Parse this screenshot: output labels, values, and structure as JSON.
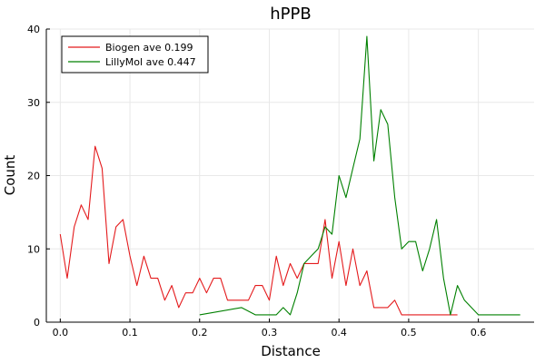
{
  "chart_data": {
    "type": "line",
    "title": "hPPB",
    "xlabel": "Distance",
    "ylabel": "Count",
    "xlim": [
      -0.02,
      0.68
    ],
    "ylim": [
      0,
      40
    ],
    "xticks": [
      0.0,
      0.1,
      0.2,
      0.3,
      0.4,
      0.5,
      0.6
    ],
    "xtick_labels": [
      "0.0",
      "0.1",
      "0.2",
      "0.3",
      "0.4",
      "0.5",
      "0.6"
    ],
    "yticks": [
      0,
      10,
      20,
      30,
      40
    ],
    "ytick_labels": [
      "0",
      "10",
      "20",
      "30",
      "40"
    ],
    "grid": true,
    "legend_position": "top-left",
    "series": [
      {
        "name": "Biogen ave 0.199",
        "color": "#e41a1c",
        "x": [
          0.0,
          0.01,
          0.02,
          0.03,
          0.04,
          0.05,
          0.06,
          0.07,
          0.08,
          0.09,
          0.1,
          0.11,
          0.12,
          0.13,
          0.14,
          0.15,
          0.16,
          0.17,
          0.18,
          0.19,
          0.2,
          0.21,
          0.22,
          0.23,
          0.24,
          0.25,
          0.26,
          0.27,
          0.28,
          0.29,
          0.3,
          0.31,
          0.32,
          0.33,
          0.34,
          0.35,
          0.36,
          0.37,
          0.38,
          0.39,
          0.4,
          0.41,
          0.42,
          0.43,
          0.44,
          0.45,
          0.46,
          0.47,
          0.48,
          0.49,
          0.5,
          0.51,
          0.52,
          0.53,
          0.54,
          0.55,
          0.56,
          0.57
        ],
        "y": [
          12,
          6,
          13,
          16,
          14,
          24,
          21,
          8,
          13,
          14,
          9,
          5,
          9,
          6,
          6,
          3,
          5,
          2,
          4,
          4,
          6,
          4,
          6,
          6,
          3,
          3,
          3,
          3,
          5,
          5,
          3,
          9,
          5,
          8,
          6,
          8,
          8,
          8,
          14,
          6,
          11,
          5,
          10,
          5,
          7,
          2,
          2,
          2,
          3,
          1,
          1,
          1,
          1,
          1,
          1,
          1,
          1,
          1
        ]
      },
      {
        "name": "LillyMol ave 0.447",
        "color": "#008000",
        "x": [
          0.2,
          0.26,
          0.28,
          0.29,
          0.3,
          0.31,
          0.32,
          0.33,
          0.34,
          0.35,
          0.36,
          0.37,
          0.38,
          0.39,
          0.4,
          0.41,
          0.42,
          0.43,
          0.44,
          0.45,
          0.46,
          0.47,
          0.48,
          0.49,
          0.5,
          0.51,
          0.52,
          0.53,
          0.54,
          0.55,
          0.56,
          0.57,
          0.58,
          0.6,
          0.62,
          0.64,
          0.66
        ],
        "y": [
          1,
          2,
          1,
          1,
          1,
          1,
          2,
          1,
          4,
          8,
          9,
          10,
          13,
          12,
          20,
          17,
          21,
          25,
          39,
          22,
          29,
          27,
          17,
          10,
          11,
          11,
          7,
          10,
          14,
          6,
          1,
          5,
          3,
          1,
          1,
          1,
          1
        ]
      }
    ]
  }
}
